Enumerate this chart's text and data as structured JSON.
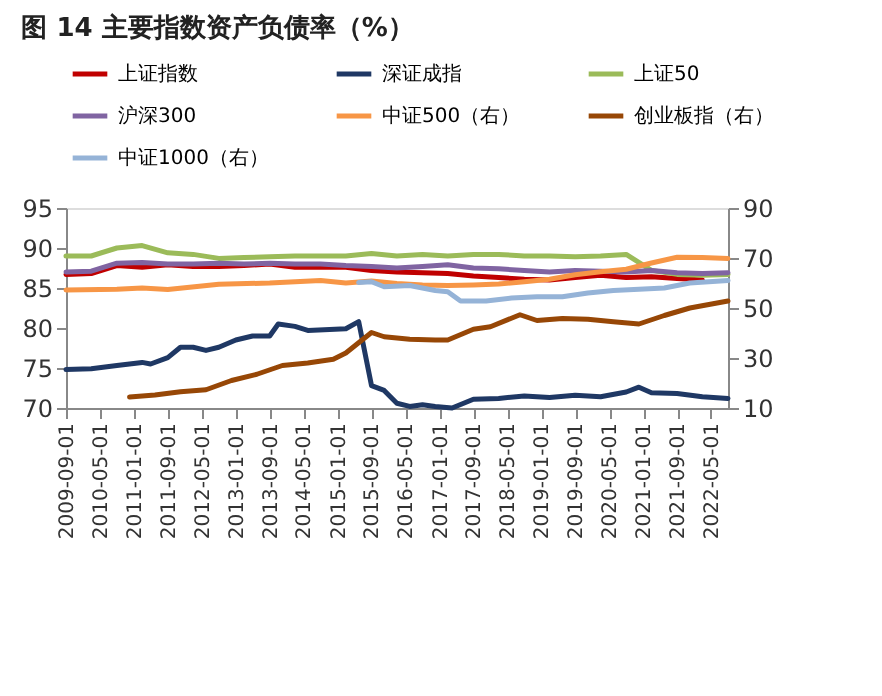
{
  "chart_data": {
    "type": "line",
    "title": "图 14  主要指数资产负债率（%）",
    "xlim": [
      "2009-09-01",
      "2022-09-01"
    ],
    "xticks": [
      "2009-09-01",
      "2010-05-01",
      "2011-01-01",
      "2011-09-01",
      "2012-05-01",
      "2013-01-01",
      "2013-09-01",
      "2014-05-01",
      "2015-01-01",
      "2015-09-01",
      "2016-05-01",
      "2017-01-01",
      "2017-09-01",
      "2018-05-01",
      "2019-01-01",
      "2019-09-01",
      "2020-05-01",
      "2021-01-01",
      "2021-09-01",
      "2022-05-01"
    ],
    "ylim": [
      70,
      95
    ],
    "yticks": [
      70,
      75,
      80,
      85,
      90,
      95
    ],
    "y2lim": [
      10,
      90
    ],
    "y2ticks": [
      10,
      30,
      50,
      70,
      90
    ],
    "grid": false,
    "legend": "top",
    "series": [
      {
        "name": "上证指数",
        "color": "#c00000",
        "x": [
          "2009-09",
          "2010-03",
          "2010-09",
          "2011-03",
          "2011-09",
          "2012-03",
          "2012-09",
          "2013-03",
          "2013-09",
          "2014-03",
          "2014-09",
          "2015-03",
          "2015-09",
          "2016-03",
          "2016-09",
          "2017-03",
          "2017-09",
          "2018-03",
          "2018-09",
          "2019-03",
          "2019-09",
          "2020-03",
          "2020-09",
          "2021-03",
          "2021-09",
          "2022-03"
        ],
        "values": [
          86.7,
          86.8,
          87.8,
          87.6,
          87.9,
          87.7,
          87.7,
          87.8,
          88.0,
          87.6,
          87.6,
          87.6,
          87.2,
          87.0,
          86.9,
          86.8,
          86.5,
          86.3,
          86.1,
          86.0,
          86.3,
          86.6,
          86.3,
          86.4,
          86.2,
          86.0
        ]
      },
      {
        "name": "深证成指",
        "color": "#1f3864",
        "x": [
          "2009-09",
          "2010-03",
          "2010-09",
          "2011-03",
          "2011-05",
          "2011-09",
          "2011-12",
          "2012-03",
          "2012-06",
          "2012-09",
          "2013-01",
          "2013-05",
          "2013-09",
          "2013-11",
          "2014-03",
          "2014-06",
          "2015-03",
          "2015-06",
          "2015-09",
          "2015-12",
          "2016-03",
          "2016-06",
          "2016-09",
          "2016-12",
          "2017-04",
          "2017-09",
          "2018-03",
          "2018-09",
          "2019-03",
          "2019-09",
          "2020-03",
          "2020-09",
          "2020-12",
          "2021-03",
          "2021-09",
          "2022-03",
          "2022-09"
        ],
        "values": [
          74.8,
          74.9,
          75.3,
          75.7,
          75.5,
          76.3,
          77.6,
          77.6,
          77.2,
          77.6,
          78.5,
          79.0,
          79.0,
          80.5,
          80.2,
          79.7,
          79.9,
          80.8,
          72.8,
          72.2,
          70.6,
          70.2,
          70.4,
          70.2,
          70.0,
          71.1,
          71.2,
          71.5,
          71.3,
          71.6,
          71.4,
          72.0,
          72.6,
          71.9,
          71.8,
          71.4,
          71.2
        ]
      },
      {
        "name": "上证50",
        "color": "#9bbb59",
        "x": [
          "2009-09",
          "2010-03",
          "2010-09",
          "2011-03",
          "2011-09",
          "2012-03",
          "2012-09",
          "2013-03",
          "2013-09",
          "2014-03",
          "2014-09",
          "2015-03",
          "2015-09",
          "2016-03",
          "2016-09",
          "2017-03",
          "2017-09",
          "2018-03",
          "2018-09",
          "2019-03",
          "2019-09",
          "2020-03",
          "2020-09",
          "2021-03",
          "2021-09",
          "2022-03",
          "2022-09"
        ],
        "values": [
          89.0,
          89.0,
          90.0,
          90.3,
          89.4,
          89.2,
          88.7,
          88.8,
          88.9,
          89.0,
          89.0,
          89.0,
          89.3,
          89.0,
          89.2,
          89.0,
          89.2,
          89.2,
          89.0,
          89.0,
          88.9,
          89.0,
          89.2,
          87.2,
          86.7,
          86.6,
          86.7
        ]
      },
      {
        "name": "沪深300",
        "color": "#8064a2",
        "x": [
          "2009-09",
          "2010-03",
          "2010-09",
          "2011-03",
          "2011-09",
          "2012-03",
          "2012-09",
          "2013-03",
          "2013-09",
          "2014-03",
          "2014-09",
          "2015-03",
          "2015-09",
          "2016-03",
          "2016-09",
          "2017-03",
          "2017-09",
          "2018-03",
          "2018-09",
          "2019-03",
          "2019-09",
          "2020-03",
          "2020-09",
          "2021-03",
          "2021-09",
          "2022-03",
          "2022-09"
        ],
        "values": [
          87.0,
          87.1,
          88.1,
          88.2,
          88.0,
          88.0,
          88.1,
          88.0,
          88.1,
          88.0,
          88.0,
          87.8,
          87.7,
          87.5,
          87.7,
          87.9,
          87.5,
          87.4,
          87.2,
          87.0,
          87.2,
          87.1,
          87.0,
          87.2,
          86.9,
          86.8,
          86.9
        ]
      },
      {
        "name": "中证500（右）",
        "color": "#f79646",
        "axis": "y2",
        "x": [
          "2009-09",
          "2010-09",
          "2011-03",
          "2011-09",
          "2012-09",
          "2013-09",
          "2014-09",
          "2015-03",
          "2015-09",
          "2016-03",
          "2016-09",
          "2017-03",
          "2017-09",
          "2018-03",
          "2018-09",
          "2019-03",
          "2019-09",
          "2020-03",
          "2020-09",
          "2021-03",
          "2021-09",
          "2022-03",
          "2022-09"
        ],
        "values": [
          57.2,
          57.5,
          58.0,
          57.4,
          59.5,
          60.0,
          61.0,
          60.0,
          60.8,
          59.8,
          59.2,
          59.0,
          59.2,
          59.6,
          60.5,
          61.5,
          63.3,
          64.5,
          65.5,
          68.0,
          70.3,
          70.2,
          69.8
        ]
      },
      {
        "name": "创业板指（右）",
        "color": "#974706",
        "axis": "y2",
        "x": [
          "2010-12",
          "2011-06",
          "2011-12",
          "2012-06",
          "2012-12",
          "2013-06",
          "2013-12",
          "2014-06",
          "2014-12",
          "2015-03",
          "2015-09",
          "2015-12",
          "2016-06",
          "2016-12",
          "2017-03",
          "2017-09",
          "2018-01",
          "2018-08",
          "2018-12",
          "2019-06",
          "2019-12",
          "2020-06",
          "2020-12",
          "2021-06",
          "2021-12",
          "2022-09"
        ],
        "values": [
          14.4,
          15.2,
          16.5,
          17.3,
          21.0,
          23.5,
          27.0,
          28.0,
          29.5,
          32.0,
          40.2,
          38.5,
          37.5,
          37.2,
          37.2,
          41.5,
          42.5,
          47.3,
          45.0,
          45.8,
          45.5,
          44.5,
          43.6,
          47.0,
          50.0,
          52.8
        ]
      },
      {
        "name": "中证1000（右）",
        "color": "#95b3d7",
        "axis": "y2",
        "x": [
          "2015-06",
          "2015-09",
          "2015-12",
          "2016-06",
          "2016-12",
          "2017-03",
          "2017-06",
          "2017-12",
          "2018-06",
          "2018-12",
          "2019-06",
          "2019-12",
          "2020-06",
          "2020-12",
          "2021-06",
          "2021-12",
          "2022-09"
        ],
        "values": [
          60.2,
          60.5,
          58.5,
          59.0,
          57.0,
          56.5,
          52.8,
          52.8,
          54.0,
          54.5,
          54.5,
          56.0,
          57.0,
          57.5,
          58.0,
          60.0,
          61.0
        ]
      }
    ]
  }
}
